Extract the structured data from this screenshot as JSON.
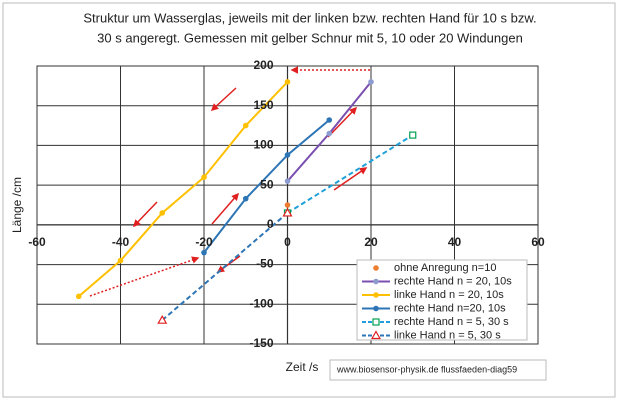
{
  "chart_data": {
    "type": "scatter",
    "title": [
      "Struktur um Wasserglas,  jeweils mit der linken bzw. rechten Hand für 10 s bzw.",
      "30 s angeregt. Gemessen mit gelber Schnur mit 5, 10 oder 20 Windungen"
    ],
    "x_label": "Zeit /s",
    "y_label": "Länge /cm",
    "source": "www.biosensor-physik.de  flussfaeden-diag59",
    "xlim": [
      -60,
      60
    ],
    "xticks": [
      -60,
      -40,
      -20,
      0,
      20,
      40,
      60
    ],
    "ylim": [
      -150,
      200
    ],
    "yticks": [
      -150,
      -100,
      -50,
      0,
      50,
      100,
      150,
      200
    ],
    "grid": true,
    "legend": "lower right",
    "series": [
      {
        "name": "ohne Anregung n=10",
        "color": "#ed7d31",
        "line": false,
        "marker": "circle",
        "x": [
          0,
          0
        ],
        "values": [
          25,
          15
        ]
      },
      {
        "name": "rechte Hand n = 20, 10s",
        "color": "#7a4fb0",
        "line": true,
        "marker": "circle",
        "marker_color": "#8e9bd0",
        "x": [
          0,
          10,
          20
        ],
        "values": [
          55,
          115,
          180
        ]
      },
      {
        "name": "linke Hand n = 20, 10s",
        "color": "#ffc000",
        "line": true,
        "marker": "circle",
        "x": [
          -50,
          -40,
          -30,
          -20,
          -10,
          0
        ],
        "values": [
          -90,
          -45,
          15,
          60,
          125,
          180
        ]
      },
      {
        "name": "rechte Hand n=20, 10s",
        "color": "#2e75b6",
        "line": true,
        "marker": "circle",
        "x": [
          -20,
          -10,
          0,
          10
        ],
        "values": [
          -35,
          33,
          88,
          132
        ]
      },
      {
        "name": "rechte Hand n = 5, 30 s",
        "color": "#1ea0d8",
        "line": true,
        "dashed": true,
        "marker": "square",
        "marker_color": "#00a050",
        "x": [
          0,
          30
        ],
        "values": [
          15,
          113
        ]
      },
      {
        "name": "linke Hand n = 5, 30 s",
        "color": "#2e75b6",
        "line": true,
        "dashed": true,
        "marker": "triangle",
        "marker_color": "#e02020",
        "x": [
          -30,
          0
        ],
        "values": [
          -120,
          15
        ]
      }
    ]
  }
}
